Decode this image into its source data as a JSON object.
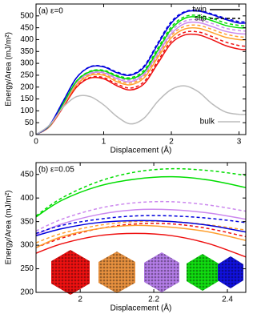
{
  "chart_data": [
    {
      "type": "line",
      "annotation": "(a) ε=0",
      "xlabel": "Displacement (Å)",
      "ylabel": "Energy/Area (mJ/m²)",
      "xlim": [
        0,
        3.1
      ],
      "ylim": [
        0,
        550
      ],
      "xticks": [
        0,
        1,
        2,
        3
      ],
      "yticks": [
        0,
        50,
        100,
        150,
        200,
        250,
        300,
        350,
        400,
        450,
        500
      ],
      "x": [
        0,
        0.2,
        0.4,
        0.6,
        0.8,
        1.0,
        1.2,
        1.4,
        1.6,
        1.8,
        2.0,
        2.2,
        2.4,
        2.6,
        2.8,
        3.0,
        3.1
      ],
      "legend": [
        {
          "name": "twin",
          "color": "#000000",
          "dashed": false
        },
        {
          "name": "slip",
          "color": "#000000",
          "dashed": true
        },
        {
          "name": "bulk",
          "color": "#bbbbbb",
          "dashed": false
        }
      ],
      "series": [
        {
          "color": "#ee1111",
          "dashed": false,
          "values": [
            0,
            34,
            115,
            200,
            238,
            235,
            205,
            188,
            215,
            300,
            385,
            420,
            420,
            400,
            375,
            360,
            358
          ]
        },
        {
          "color": "#ee1111",
          "dashed": true,
          "values": [
            0,
            34,
            116,
            202,
            241,
            240,
            212,
            196,
            224,
            310,
            395,
            431,
            432,
            413,
            390,
            375,
            372
          ]
        },
        {
          "color": "#ffa030",
          "dashed": false,
          "values": [
            0,
            36,
            120,
            210,
            250,
            250,
            222,
            210,
            240,
            325,
            408,
            445,
            448,
            430,
            410,
            400,
            399
          ]
        },
        {
          "color": "#ffa030",
          "dashed": true,
          "values": [
            0,
            36,
            121,
            212,
            253,
            254,
            228,
            217,
            248,
            334,
            418,
            456,
            460,
            443,
            423,
            412,
            410
          ]
        },
        {
          "color": "#cc88ee",
          "dashed": false,
          "values": [
            0,
            37,
            125,
            220,
            258,
            260,
            235,
            223,
            255,
            340,
            425,
            468,
            472,
            455,
            435,
            425,
            424
          ]
        },
        {
          "color": "#cc88ee",
          "dashed": true,
          "values": [
            0,
            37,
            126,
            222,
            261,
            264,
            241,
            230,
            262,
            350,
            436,
            478,
            483,
            468,
            448,
            438,
            436
          ]
        },
        {
          "color": "#00dd00",
          "dashed": false,
          "values": [
            0,
            38,
            130,
            225,
            265,
            268,
            245,
            235,
            265,
            355,
            445,
            490,
            495,
            480,
            460,
            450,
            450
          ]
        },
        {
          "color": "#00dd00",
          "dashed": true,
          "values": [
            0,
            38,
            131,
            226,
            267,
            271,
            249,
            240,
            272,
            364,
            454,
            497,
            502,
            490,
            470,
            460,
            458
          ]
        },
        {
          "color": "#0000dd",
          "dashed": false,
          "values": [
            0,
            40,
            140,
            240,
            285,
            285,
            260,
            250,
            285,
            380,
            470,
            515,
            520,
            505,
            485,
            470,
            470
          ]
        },
        {
          "color": "#0000dd",
          "dashed": true,
          "values": [
            0,
            40,
            140,
            240,
            286,
            287,
            263,
            253,
            290,
            386,
            476,
            518,
            523,
            508,
            490,
            476,
            475
          ]
        },
        {
          "color": "#bbbbbb",
          "dashed": false,
          "values": [
            0,
            40,
            115,
            160,
            160,
            125,
            75,
            45,
            70,
            140,
            190,
            205,
            180,
            130,
            95,
            85,
            85
          ]
        }
      ]
    },
    {
      "type": "line",
      "annotation": "(b) ε=0.05",
      "xlabel": "Displacement (Å)",
      "ylabel": "Energy/Area (mJ/m²)",
      "xlim": [
        1.88,
        2.45
      ],
      "ylim": [
        200,
        475
      ],
      "xticks": [
        2,
        2.2,
        2.4
      ],
      "yticks": [
        200,
        250,
        300,
        350,
        400,
        450
      ],
      "x": [
        1.88,
        1.95,
        2.05,
        2.15,
        2.25,
        2.35,
        2.45
      ],
      "series": [
        {
          "color": "#ee1111",
          "dashed": false,
          "values": [
            283,
            303,
            320,
            325,
            320,
            303,
            275
          ]
        },
        {
          "color": "#ee1111",
          "dashed": true,
          "values": [
            295,
            315,
            335,
            345,
            345,
            335,
            318
          ]
        },
        {
          "color": "#ffa030",
          "dashed": false,
          "values": [
            295,
            318,
            335,
            342,
            338,
            328,
            310
          ]
        },
        {
          "color": "#ffa030",
          "dashed": true,
          "values": [
            305,
            325,
            342,
            350,
            350,
            343,
            332
          ]
        },
        {
          "color": "#cc88ee",
          "dashed": false,
          "values": [
            322,
            345,
            365,
            375,
            375,
            368,
            355
          ]
        },
        {
          "color": "#cc88ee",
          "dashed": true,
          "values": [
            330,
            355,
            378,
            390,
            392,
            385,
            372
          ]
        },
        {
          "color": "#00dd00",
          "dashed": false,
          "values": [
            360,
            395,
            425,
            440,
            445,
            438,
            422
          ]
        },
        {
          "color": "#00dd00",
          "dashed": true,
          "values": [
            362,
            400,
            435,
            455,
            462,
            458,
            448
          ]
        },
        {
          "color": "#0000dd",
          "dashed": false,
          "values": [
            320,
            335,
            348,
            352,
            350,
            342,
            328
          ]
        },
        {
          "color": "#0000dd",
          "dashed": true,
          "values": [
            325,
            342,
            355,
            362,
            362,
            357,
            348
          ]
        }
      ]
    }
  ]
}
